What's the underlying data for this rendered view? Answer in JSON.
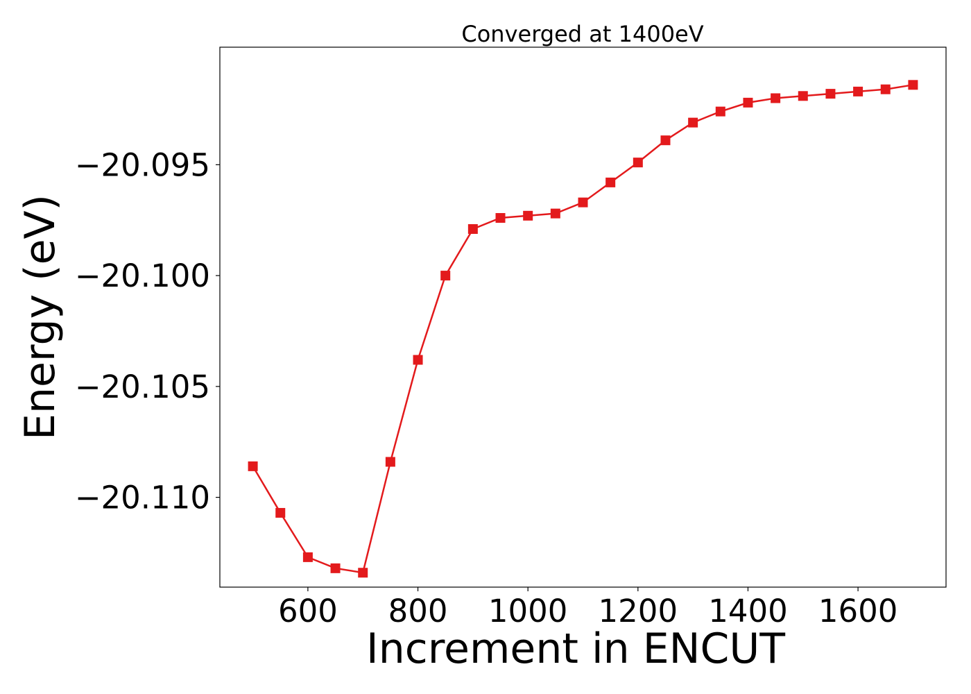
{
  "chart_data": {
    "type": "line",
    "title": "Converged at 1400eV",
    "xlabel": "Increment in ENCUT",
    "ylabel": "Energy (eV)",
    "xlim": [
      440,
      1760
    ],
    "ylim": [
      -20.11405,
      -20.0897
    ],
    "x_ticks": [
      600,
      800,
      1000,
      1200,
      1400,
      1600
    ],
    "y_ticks": [
      -20.11,
      -20.105,
      -20.1,
      -20.095
    ],
    "x_tick_labels": [
      "600",
      "800",
      "1000",
      "1200",
      "1400",
      "1600"
    ],
    "y_tick_labels": [
      "−20.110",
      "−20.105",
      "−20.100",
      "−20.095"
    ],
    "grid": false,
    "series": [
      {
        "color": "#e31a1c",
        "marker": "square",
        "x": [
          500,
          550,
          600,
          650,
          700,
          750,
          800,
          850,
          900,
          950,
          1000,
          1050,
          1100,
          1150,
          1200,
          1250,
          1300,
          1350,
          1400,
          1450,
          1500,
          1550,
          1600,
          1650,
          1700
        ],
        "y": [
          -20.1086,
          -20.1107,
          -20.1127,
          -20.1132,
          -20.1134,
          -20.1084,
          -20.1038,
          -20.1,
          -20.0979,
          -20.0974,
          -20.0973,
          -20.0972,
          -20.0967,
          -20.0958,
          -20.0949,
          -20.0939,
          -20.0931,
          -20.0926,
          -20.0922,
          -20.092,
          -20.0919,
          -20.0918,
          -20.0917,
          -20.0916,
          -20.0914
        ]
      }
    ]
  }
}
